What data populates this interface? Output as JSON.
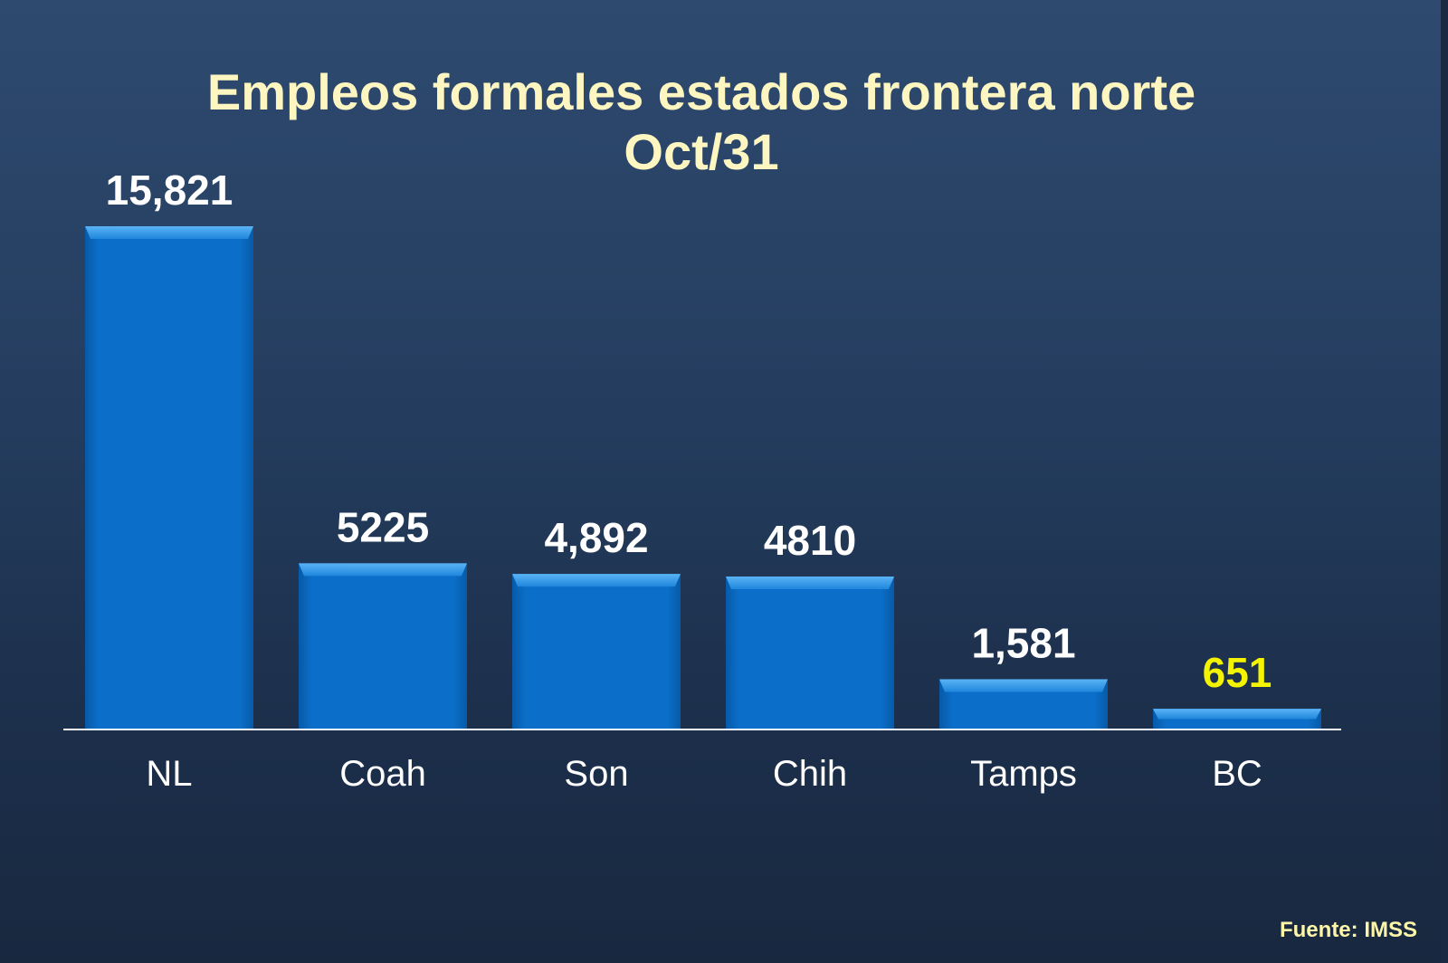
{
  "chart_data": {
    "type": "bar",
    "title": "Empleos formales estados frontera norte",
    "subtitle": "Oct/31",
    "categories": [
      "NL",
      "Coah",
      "Son",
      "Chih",
      "Tamps",
      "BC"
    ],
    "values": [
      15821,
      5225,
      4892,
      4810,
      1581,
      651
    ],
    "value_labels": [
      "15,821",
      "5225",
      "4,892",
      "4810",
      "1,581",
      "651"
    ],
    "highlight_category": "BC",
    "ylim": [
      0,
      17000
    ],
    "grid": false,
    "legend": "none",
    "source": "Fuente: IMSS",
    "colors": {
      "bar": "#0b6fc9",
      "bar_top": "#2e94e8",
      "value_label": "#ffffff",
      "highlight_label": "#f4f400",
      "title": "#fdf6c0",
      "axis": "#ffffff"
    }
  }
}
